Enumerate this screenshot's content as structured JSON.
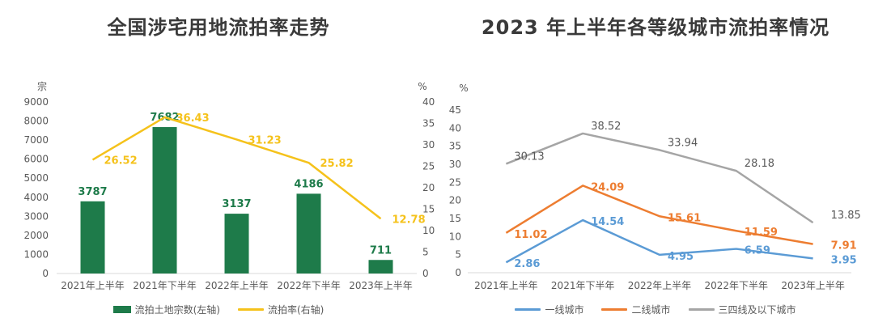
{
  "chart_data": [
    {
      "type": "bar+line",
      "title": "全国涉宅用地流拍率走势",
      "categories": [
        "2021年上半年",
        "2021年下半年",
        "2022年上半年",
        "2022年下半年",
        "2023年上半年"
      ],
      "ylabel_left": "宗",
      "ylabel_right": "%",
      "ylim_left": [
        0,
        9000
      ],
      "ylim_right": [
        0,
        40
      ],
      "yticks_left": [
        0,
        1000,
        2000,
        3000,
        4000,
        5000,
        6000,
        7000,
        8000,
        9000
      ],
      "yticks_right": [
        0,
        5,
        10,
        15,
        20,
        25,
        30,
        35,
        40
      ],
      "grid": false,
      "series": [
        {
          "name": "流拍土地宗数(左轴)",
          "kind": "bar",
          "axis": "left",
          "color": "#1e7b4a",
          "values": [
            3787,
            7682,
            3137,
            4186,
            711
          ],
          "labels": [
            "3787",
            "7682",
            "3137",
            "4186",
            "711"
          ]
        },
        {
          "name": "流拍率(右轴)",
          "kind": "line",
          "axis": "right",
          "color": "#f5c21b",
          "values": [
            26.52,
            36.43,
            31.23,
            25.82,
            12.78
          ],
          "labels": [
            "26.52",
            "36.43",
            "31.23",
            "25.82",
            "12.78"
          ]
        }
      ],
      "legend_position": "bottom"
    },
    {
      "type": "line",
      "title": "2023 年上半年各等级城市流拍率情况",
      "categories": [
        "2021年上半年",
        "2021年下半年",
        "2022年上半年",
        "2022年下半年",
        "2023年上半年"
      ],
      "ylabel": "%",
      "ylim": [
        0,
        45
      ],
      "yticks": [
        0,
        5,
        10,
        15,
        20,
        25,
        30,
        35,
        40,
        45
      ],
      "grid": false,
      "series": [
        {
          "name": "一线城市",
          "color": "#5b9bd5",
          "values": [
            2.86,
            14.54,
            4.95,
            6.59,
            3.95
          ],
          "labels": [
            "2.86",
            "14.54",
            "4.95",
            "6.59",
            "3.95"
          ]
        },
        {
          "name": "二线城市",
          "color": "#ed7d31",
          "values": [
            11.02,
            24.09,
            15.61,
            11.59,
            7.91
          ],
          "labels": [
            "11.02",
            "24.09",
            "15.61",
            "11.59",
            "7.91"
          ]
        },
        {
          "name": "三四线及以下城市",
          "color": "#a5a5a5",
          "values": [
            30.13,
            38.52,
            33.94,
            28.18,
            13.85
          ],
          "labels": [
            "30.13",
            "38.52",
            "33.94",
            "28.18",
            "13.85"
          ]
        }
      ],
      "legend_position": "bottom"
    }
  ]
}
